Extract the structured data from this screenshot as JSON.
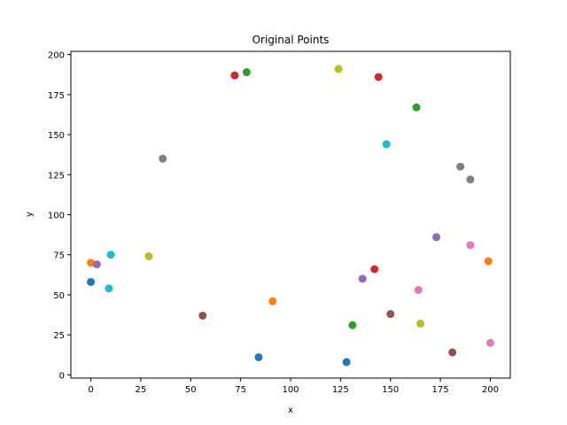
{
  "chart_data": {
    "type": "scatter",
    "title": "Original Points",
    "xlabel": "x",
    "ylabel": "y",
    "xlim": [
      -10,
      210
    ],
    "ylim": [
      -2,
      202
    ],
    "xticks": [
      "0",
      "25",
      "50",
      "75",
      "100",
      "125",
      "150",
      "175",
      "200"
    ],
    "yticks": [
      "0",
      "25",
      "50",
      "75",
      "100",
      "125",
      "150",
      "175",
      "200"
    ],
    "grid": false,
    "legend": "none",
    "points": [
      {
        "x": 0,
        "y": 58,
        "color": "#1f77b4"
      },
      {
        "x": 84,
        "y": 11,
        "color": "#1f77b4"
      },
      {
        "x": 128,
        "y": 8,
        "color": "#1f77b4"
      },
      {
        "x": 0,
        "y": 70,
        "color": "#ff7f0e"
      },
      {
        "x": 91,
        "y": 46,
        "color": "#ff7f0e"
      },
      {
        "x": 199,
        "y": 71,
        "color": "#ff7f0e"
      },
      {
        "x": 78,
        "y": 189,
        "color": "#2ca02c"
      },
      {
        "x": 131,
        "y": 31,
        "color": "#2ca02c"
      },
      {
        "x": 163,
        "y": 167,
        "color": "#2ca02c"
      },
      {
        "x": 72,
        "y": 187,
        "color": "#d62728"
      },
      {
        "x": 144,
        "y": 186,
        "color": "#d62728"
      },
      {
        "x": 142,
        "y": 66,
        "color": "#d62728"
      },
      {
        "x": 3,
        "y": 69,
        "color": "#9467bd"
      },
      {
        "x": 136,
        "y": 60,
        "color": "#9467bd"
      },
      {
        "x": 173,
        "y": 86,
        "color": "#9467bd"
      },
      {
        "x": 56,
        "y": 37,
        "color": "#8c564b"
      },
      {
        "x": 150,
        "y": 38,
        "color": "#8c564b"
      },
      {
        "x": 181,
        "y": 14,
        "color": "#8c564b"
      },
      {
        "x": 164,
        "y": 53,
        "color": "#e377c2"
      },
      {
        "x": 190,
        "y": 81,
        "color": "#e377c2"
      },
      {
        "x": 200,
        "y": 20,
        "color": "#e377c2"
      },
      {
        "x": 36,
        "y": 135,
        "color": "#7f7f7f"
      },
      {
        "x": 185,
        "y": 130,
        "color": "#7f7f7f"
      },
      {
        "x": 190,
        "y": 122,
        "color": "#7f7f7f"
      },
      {
        "x": 29,
        "y": 74,
        "color": "#bcbd22"
      },
      {
        "x": 124,
        "y": 191,
        "color": "#bcbd22"
      },
      {
        "x": 165,
        "y": 32,
        "color": "#bcbd22"
      },
      {
        "x": 10,
        "y": 75,
        "color": "#17becf"
      },
      {
        "x": 9,
        "y": 54,
        "color": "#17becf"
      },
      {
        "x": 148,
        "y": 144,
        "color": "#17becf"
      }
    ]
  }
}
